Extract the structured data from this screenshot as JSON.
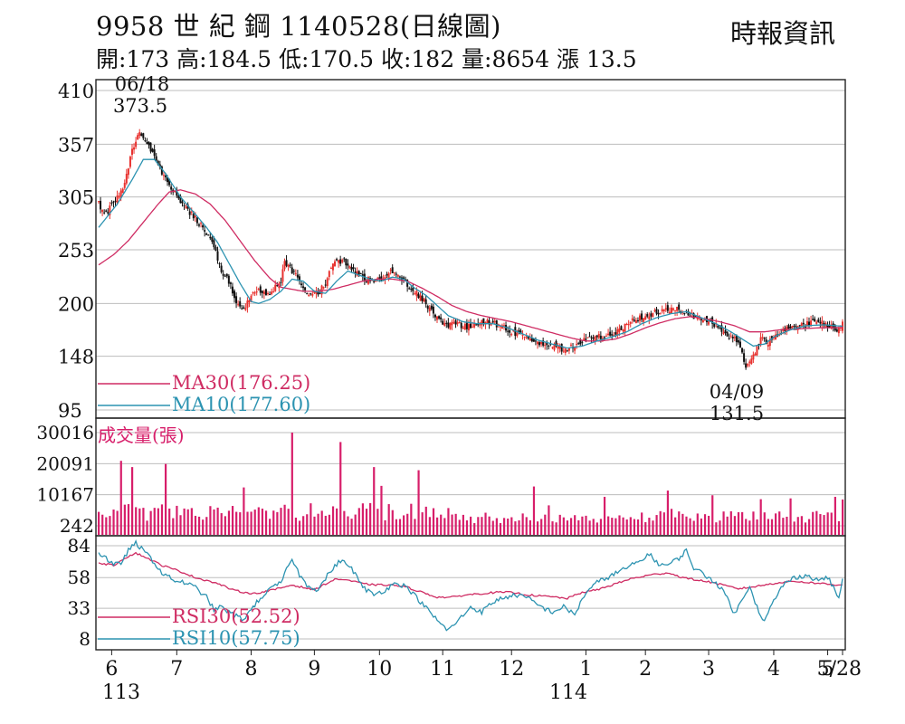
{
  "header": {
    "title": "9958  世 紀 鋼 1140528(日線圖)",
    "quote": "開:173 高:184.5 低:170.5 收:182 量:8654 漲 13.5",
    "source": "時報資訊"
  },
  "colors": {
    "up": "#e8312e",
    "down": "#111111",
    "ma30": "#cf2c63",
    "ma10": "#2c93b1",
    "volume": "#d71e6a",
    "grid": "#bdbdbd"
  },
  "chart_data": [
    {
      "type": "candlestick",
      "name": "price",
      "ylim": [
        95,
        410
      ],
      "y_ticks": [
        "410",
        "357",
        "305",
        "253",
        "200",
        "148",
        "95"
      ],
      "x_ticks": [
        "6",
        "7",
        "8",
        "9",
        "10",
        "11",
        "12",
        "1",
        "2",
        "3",
        "4",
        "5",
        "5/28"
      ],
      "year_labels": [
        "113",
        "114"
      ],
      "ohlc_last": {
        "open": 173,
        "high": 184.5,
        "low": 170.5,
        "close": 182,
        "change": 13.5
      },
      "annotations": [
        {
          "date": "06/18",
          "value": "373.5",
          "kind": "high"
        },
        {
          "date": "04/09",
          "value": "131.5",
          "kind": "low"
        }
      ],
      "legend": [
        {
          "label": "MA30(176.25)",
          "series": "ma30"
        },
        {
          "label": "MA10(177.60)",
          "series": "ma10"
        }
      ],
      "close_keypoints": [
        [
          0,
          298
        ],
        [
          4,
          288
        ],
        [
          8,
          300
        ],
        [
          14,
          318
        ],
        [
          18,
          352
        ],
        [
          22,
          368
        ],
        [
          26,
          358
        ],
        [
          32,
          335
        ],
        [
          38,
          315
        ],
        [
          44,
          300
        ],
        [
          50,
          288
        ],
        [
          56,
          275
        ],
        [
          62,
          255
        ],
        [
          66,
          232
        ],
        [
          70,
          222
        ],
        [
          74,
          200
        ],
        [
          78,
          192
        ],
        [
          82,
          208
        ],
        [
          86,
          212
        ],
        [
          92,
          210
        ],
        [
          98,
          222
        ],
        [
          100,
          242
        ],
        [
          104,
          232
        ],
        [
          108,
          222
        ],
        [
          112,
          208
        ],
        [
          118,
          210
        ],
        [
          122,
          220
        ],
        [
          126,
          240
        ],
        [
          132,
          242
        ],
        [
          138,
          230
        ],
        [
          144,
          224
        ],
        [
          150,
          222
        ],
        [
          156,
          232
        ],
        [
          162,
          228
        ],
        [
          168,
          215
        ],
        [
          174,
          205
        ],
        [
          180,
          190
        ],
        [
          186,
          178
        ],
        [
          192,
          180
        ],
        [
          198,
          177
        ],
        [
          204,
          180
        ],
        [
          210,
          182
        ],
        [
          216,
          178
        ],
        [
          222,
          172
        ],
        [
          228,
          168
        ],
        [
          234,
          162
        ],
        [
          240,
          160
        ],
        [
          246,
          157
        ],
        [
          250,
          155
        ],
        [
          256,
          159
        ],
        [
          262,
          164
        ],
        [
          268,
          167
        ],
        [
          274,
          169
        ],
        [
          280,
          174
        ],
        [
          286,
          182
        ],
        [
          292,
          187
        ],
        [
          298,
          190
        ],
        [
          304,
          192
        ],
        [
          310,
          195
        ],
        [
          316,
          191
        ],
        [
          322,
          186
        ],
        [
          328,
          182
        ],
        [
          334,
          176
        ],
        [
          338,
          166
        ],
        [
          342,
          168
        ],
        [
          346,
          150
        ],
        [
          348,
          138
        ],
        [
          352,
          148
        ],
        [
          356,
          165
        ],
        [
          360,
          162
        ],
        [
          366,
          172
        ],
        [
          372,
          176
        ],
        [
          378,
          179
        ],
        [
          384,
          181
        ],
        [
          390,
          180
        ],
        [
          394,
          178
        ],
        [
          397,
          172
        ],
        [
          400,
          182
        ]
      ],
      "ma10_keypoints": [
        [
          0,
          275
        ],
        [
          10,
          298
        ],
        [
          18,
          322
        ],
        [
          24,
          342
        ],
        [
          30,
          342
        ],
        [
          36,
          328
        ],
        [
          44,
          305
        ],
        [
          52,
          288
        ],
        [
          58,
          275
        ],
        [
          64,
          260
        ],
        [
          70,
          240
        ],
        [
          76,
          220
        ],
        [
          82,
          202
        ],
        [
          86,
          200
        ],
        [
          92,
          204
        ],
        [
          98,
          212
        ],
        [
          104,
          224
        ],
        [
          110,
          222
        ],
        [
          116,
          212
        ],
        [
          122,
          210
        ],
        [
          128,
          222
        ],
        [
          134,
          232
        ],
        [
          140,
          228
        ],
        [
          146,
          224
        ],
        [
          152,
          222
        ],
        [
          158,
          226
        ],
        [
          164,
          224
        ],
        [
          170,
          215
        ],
        [
          176,
          208
        ],
        [
          182,
          198
        ],
        [
          188,
          188
        ],
        [
          196,
          182
        ],
        [
          204,
          180
        ],
        [
          212,
          180
        ],
        [
          220,
          176
        ],
        [
          228,
          170
        ],
        [
          236,
          164
        ],
        [
          244,
          160
        ],
        [
          252,
          156
        ],
        [
          260,
          158
        ],
        [
          268,
          163
        ],
        [
          276,
          167
        ],
        [
          284,
          172
        ],
        [
          292,
          180
        ],
        [
          300,
          186
        ],
        [
          308,
          190
        ],
        [
          316,
          192
        ],
        [
          324,
          186
        ],
        [
          332,
          180
        ],
        [
          340,
          172
        ],
        [
          346,
          165
        ],
        [
          352,
          158
        ],
        [
          358,
          160
        ],
        [
          364,
          168
        ],
        [
          372,
          174
        ],
        [
          380,
          178
        ],
        [
          390,
          179
        ],
        [
          400,
          177.6
        ]
      ],
      "ma30_keypoints": [
        [
          0,
          238
        ],
        [
          8,
          248
        ],
        [
          16,
          262
        ],
        [
          24,
          280
        ],
        [
          32,
          298
        ],
        [
          38,
          310
        ],
        [
          44,
          312
        ],
        [
          52,
          308
        ],
        [
          60,
          298
        ],
        [
          68,
          282
        ],
        [
          76,
          262
        ],
        [
          84,
          242
        ],
        [
          92,
          225
        ],
        [
          98,
          216
        ],
        [
          104,
          214
        ],
        [
          110,
          212
        ],
        [
          118,
          212
        ],
        [
          126,
          214
        ],
        [
          134,
          218
        ],
        [
          142,
          222
        ],
        [
          150,
          224
        ],
        [
          158,
          224
        ],
        [
          166,
          222
        ],
        [
          174,
          215
        ],
        [
          182,
          207
        ],
        [
          190,
          198
        ],
        [
          198,
          192
        ],
        [
          206,
          188
        ],
        [
          214,
          185
        ],
        [
          222,
          182
        ],
        [
          230,
          178
        ],
        [
          238,
          174
        ],
        [
          246,
          170
        ],
        [
          254,
          166
        ],
        [
          262,
          163
        ],
        [
          270,
          163
        ],
        [
          278,
          165
        ],
        [
          286,
          170
        ],
        [
          294,
          176
        ],
        [
          302,
          181
        ],
        [
          310,
          185
        ],
        [
          318,
          187
        ],
        [
          326,
          185
        ],
        [
          334,
          182
        ],
        [
          342,
          178
        ],
        [
          350,
          172
        ],
        [
          358,
          172
        ],
        [
          366,
          174
        ],
        [
          376,
          175
        ],
        [
          388,
          176
        ],
        [
          400,
          176.25
        ]
      ]
    },
    {
      "type": "bar",
      "name": "volume",
      "title": "成交量(張)",
      "y_ticks": [
        "30016",
        "20091",
        "10167",
        "242"
      ],
      "ylim": [
        242,
        30016
      ],
      "spikes": [
        [
          12,
          21000
        ],
        [
          18,
          19000
        ],
        [
          36,
          20000
        ],
        [
          78,
          12500
        ],
        [
          104,
          30016
        ],
        [
          130,
          27000
        ],
        [
          148,
          19000
        ],
        [
          152,
          13000
        ],
        [
          172,
          18000
        ],
        [
          234,
          12800
        ],
        [
          272,
          9500
        ],
        [
          306,
          11500
        ],
        [
          330,
          10000
        ],
        [
          372,
          9000
        ],
        [
          396,
          9500
        ],
        [
          400,
          8654
        ]
      ]
    },
    {
      "type": "line",
      "name": "rsi",
      "y_ticks": [
        "84",
        "58",
        "33",
        "8"
      ],
      "ylim": [
        8,
        84
      ],
      "legend": [
        {
          "label": "RSI30(52.52)",
          "series": "rsi30"
        },
        {
          "label": "RSI10(57.75)",
          "series": "rsi10"
        }
      ],
      "rsi30_keypoints": [
        [
          0,
          70
        ],
        [
          8,
          68
        ],
        [
          14,
          74
        ],
        [
          20,
          78
        ],
        [
          26,
          74
        ],
        [
          34,
          68
        ],
        [
          44,
          63
        ],
        [
          52,
          58
        ],
        [
          60,
          55
        ],
        [
          66,
          52
        ],
        [
          72,
          48
        ],
        [
          78,
          46
        ],
        [
          84,
          45
        ],
        [
          94,
          48
        ],
        [
          104,
          52
        ],
        [
          110,
          50
        ],
        [
          116,
          48
        ],
        [
          122,
          53
        ],
        [
          128,
          57
        ],
        [
          134,
          56
        ],
        [
          142,
          53
        ],
        [
          150,
          52
        ],
        [
          158,
          52
        ],
        [
          166,
          50
        ],
        [
          174,
          46
        ],
        [
          182,
          42
        ],
        [
          190,
          42
        ],
        [
          198,
          44
        ],
        [
          206,
          45
        ],
        [
          214,
          46
        ],
        [
          222,
          46
        ],
        [
          230,
          44
        ],
        [
          238,
          43
        ],
        [
          246,
          42
        ],
        [
          252,
          41
        ],
        [
          260,
          46
        ],
        [
          268,
          48
        ],
        [
          276,
          52
        ],
        [
          286,
          57
        ],
        [
          296,
          60
        ],
        [
          306,
          62
        ],
        [
          314,
          58
        ],
        [
          322,
          56
        ],
        [
          330,
          54
        ],
        [
          338,
          51
        ],
        [
          344,
          49
        ],
        [
          350,
          50
        ],
        [
          358,
          52
        ],
        [
          366,
          54
        ],
        [
          374,
          55
        ],
        [
          382,
          54
        ],
        [
          390,
          53
        ],
        [
          396,
          52
        ],
        [
          400,
          52.52
        ]
      ],
      "rsi10_keypoints": [
        [
          0,
          78
        ],
        [
          4,
          74
        ],
        [
          8,
          68
        ],
        [
          12,
          70
        ],
        [
          16,
          80
        ],
        [
          20,
          86
        ],
        [
          24,
          80
        ],
        [
          28,
          74
        ],
        [
          34,
          62
        ],
        [
          40,
          56
        ],
        [
          46,
          54
        ],
        [
          52,
          50
        ],
        [
          58,
          42
        ],
        [
          62,
          32
        ],
        [
          66,
          34
        ],
        [
          72,
          28
        ],
        [
          78,
          24
        ],
        [
          84,
          36
        ],
        [
          90,
          46
        ],
        [
          98,
          54
        ],
        [
          104,
          74
        ],
        [
          108,
          60
        ],
        [
          112,
          52
        ],
        [
          118,
          48
        ],
        [
          124,
          62
        ],
        [
          130,
          72
        ],
        [
          136,
          66
        ],
        [
          142,
          50
        ],
        [
          148,
          44
        ],
        [
          154,
          48
        ],
        [
          160,
          54
        ],
        [
          166,
          50
        ],
        [
          172,
          40
        ],
        [
          178,
          30
        ],
        [
          184,
          20
        ],
        [
          188,
          15
        ],
        [
          194,
          24
        ],
        [
          200,
          34
        ],
        [
          206,
          30
        ],
        [
          212,
          38
        ],
        [
          218,
          42
        ],
        [
          226,
          44
        ],
        [
          232,
          40
        ],
        [
          238,
          34
        ],
        [
          244,
          30
        ],
        [
          250,
          34
        ],
        [
          256,
          28
        ],
        [
          262,
          46
        ],
        [
          268,
          54
        ],
        [
          276,
          60
        ],
        [
          284,
          66
        ],
        [
          292,
          72
        ],
        [
          296,
          78
        ],
        [
          300,
          70
        ],
        [
          306,
          68
        ],
        [
          312,
          74
        ],
        [
          316,
          80
        ],
        [
          320,
          66
        ],
        [
          326,
          60
        ],
        [
          332,
          54
        ],
        [
          338,
          42
        ],
        [
          342,
          28
        ],
        [
          346,
          40
        ],
        [
          350,
          52
        ],
        [
          354,
          34
        ],
        [
          358,
          22
        ],
        [
          362,
          36
        ],
        [
          368,
          52
        ],
        [
          374,
          58
        ],
        [
          380,
          60
        ],
        [
          386,
          56
        ],
        [
          392,
          58
        ],
        [
          396,
          48
        ],
        [
          398,
          40
        ],
        [
          400,
          57.75
        ]
      ]
    }
  ]
}
